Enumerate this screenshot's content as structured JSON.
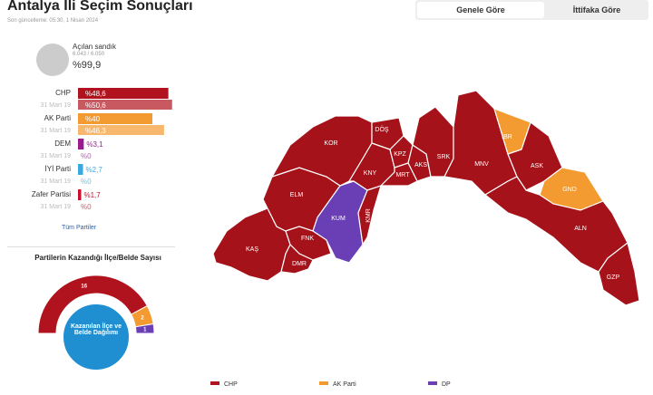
{
  "header": {
    "title": "Antalya İli Seçim Sonuçları",
    "updated": "Son güncelleme: 05:30, 1 Nisan 2024"
  },
  "tabs": [
    "Genele Göre",
    "İttifaka Göre"
  ],
  "ballot": {
    "label": "Açılan sandık",
    "count": "6.043 / 6.050",
    "percent": {
      "value": 99.9,
      "label": "%99,9"
    }
  },
  "parties": [
    {
      "name": "CHP",
      "color": "#b0131d",
      "current": {
        "value": 48.6,
        "label": "%48,6"
      },
      "previous_date": "31 Mart 19",
      "previous": {
        "value": 50.6,
        "label": "%50,6"
      }
    },
    {
      "name": "AK Parti",
      "color": "#f39a31",
      "current": {
        "value": 40,
        "label": "%40"
      },
      "previous_date": "31 Mart 19",
      "previous": {
        "value": 46.3,
        "label": "%46,3"
      }
    },
    {
      "name": "DEM",
      "color": "#9b1b8e",
      "current": {
        "value": 3.1,
        "label": "%3,1"
      },
      "previous_date": "31 Mart 19",
      "previous": {
        "value": 0,
        "label": "%0"
      }
    },
    {
      "name": "İYİ Parti",
      "color": "#3aa9e0",
      "current": {
        "value": 2.7,
        "label": "%2,7"
      },
      "previous_date": "31 Mart 19",
      "previous": {
        "value": 0,
        "label": "%0"
      }
    },
    {
      "name": "Zafer Partisi",
      "color": "#c8102e",
      "current": {
        "value": 1.7,
        "label": "%1,7"
      },
      "previous_date": "31 Mart 19",
      "previous": {
        "value": 0,
        "label": "%0"
      }
    }
  ],
  "all_parties_link": "Tüm Partiler",
  "chart_data": {
    "type": "half-donut",
    "title": "Partilerin Kazandığı İlçe/Belde Sayısı",
    "center_label": "Kazanılan İlçe ve Belde Dağılımı",
    "categories": [
      "CHP",
      "AK Parti",
      "DP"
    ],
    "values": [
      16,
      2,
      1
    ],
    "colors": [
      "#b0131d",
      "#f39a31",
      "#6a3fb6"
    ]
  },
  "map": {
    "districts": [
      {
        "label": "KAŞ",
        "color": "#a5121a"
      },
      {
        "label": "ELM",
        "color": "#a5121a"
      },
      {
        "label": "KOR",
        "color": "#a5121a"
      },
      {
        "label": "DÖŞ",
        "color": "#a5121a"
      },
      {
        "label": "KNY",
        "color": "#a5121a"
      },
      {
        "label": "KPZ",
        "color": "#a5121a"
      },
      {
        "label": "AKS",
        "color": "#a5121a"
      },
      {
        "label": "MRT",
        "color": "#a5121a"
      },
      {
        "label": "SRK",
        "color": "#a5121a"
      },
      {
        "label": "MNV",
        "color": "#a5121a"
      },
      {
        "label": "İBR",
        "color": "#f39a31"
      },
      {
        "label": "ASK",
        "color": "#a5121a"
      },
      {
        "label": "GND",
        "color": "#f39a31"
      },
      {
        "label": "ALN",
        "color": "#a5121a"
      },
      {
        "label": "GZP",
        "color": "#a5121a"
      },
      {
        "label": "KUM",
        "color": "#6a3fb6"
      },
      {
        "label": "KMR",
        "color": "#a5121a"
      },
      {
        "label": "FNK",
        "color": "#a5121a"
      },
      {
        "label": "DMR",
        "color": "#a5121a"
      }
    ]
  },
  "legend": [
    {
      "name": "CHP",
      "color": "#b0131d"
    },
    {
      "name": "AK Parti",
      "color": "#f39a31"
    },
    {
      "name": "DP",
      "color": "#6a3fb6"
    }
  ]
}
